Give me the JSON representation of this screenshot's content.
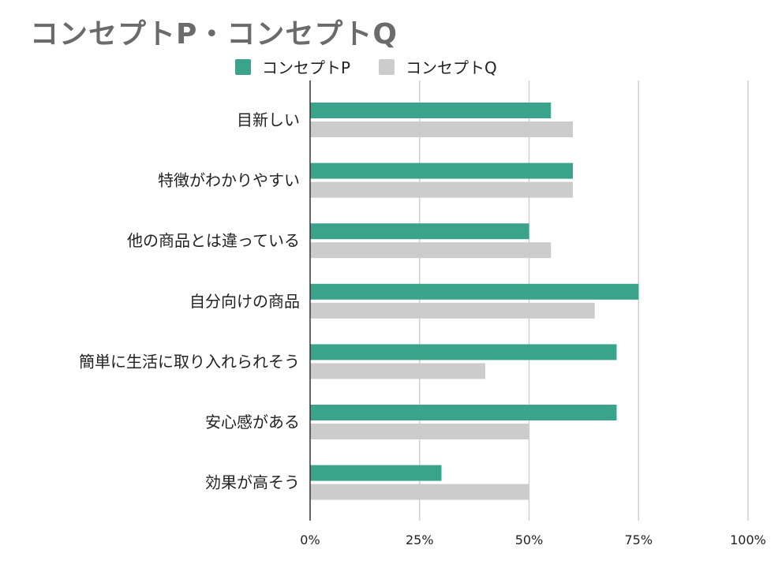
{
  "chart_data": {
    "type": "bar",
    "orientation": "horizontal",
    "title": "コンセプトP・コンセプトQ",
    "categories": [
      "目新しい",
      "特徴がわかりやすい",
      "他の商品とは違っている",
      "自分向けの商品",
      "簡単に生活に取り入れられそう",
      "安心感がある",
      "効果が高そう"
    ],
    "series": [
      {
        "name": "コンセプトP",
        "color": "#3ba38b",
        "values": [
          55,
          60,
          50,
          75,
          70,
          70,
          30
        ]
      },
      {
        "name": "コンセプトQ",
        "color": "#cccccc",
        "values": [
          60,
          60,
          55,
          65,
          40,
          50,
          50
        ]
      }
    ],
    "xlim": [
      0,
      100
    ],
    "x_ticks": [
      "0%",
      "25%",
      "50%",
      "75%",
      "100%"
    ],
    "grid": true,
    "legend_position": "top"
  }
}
